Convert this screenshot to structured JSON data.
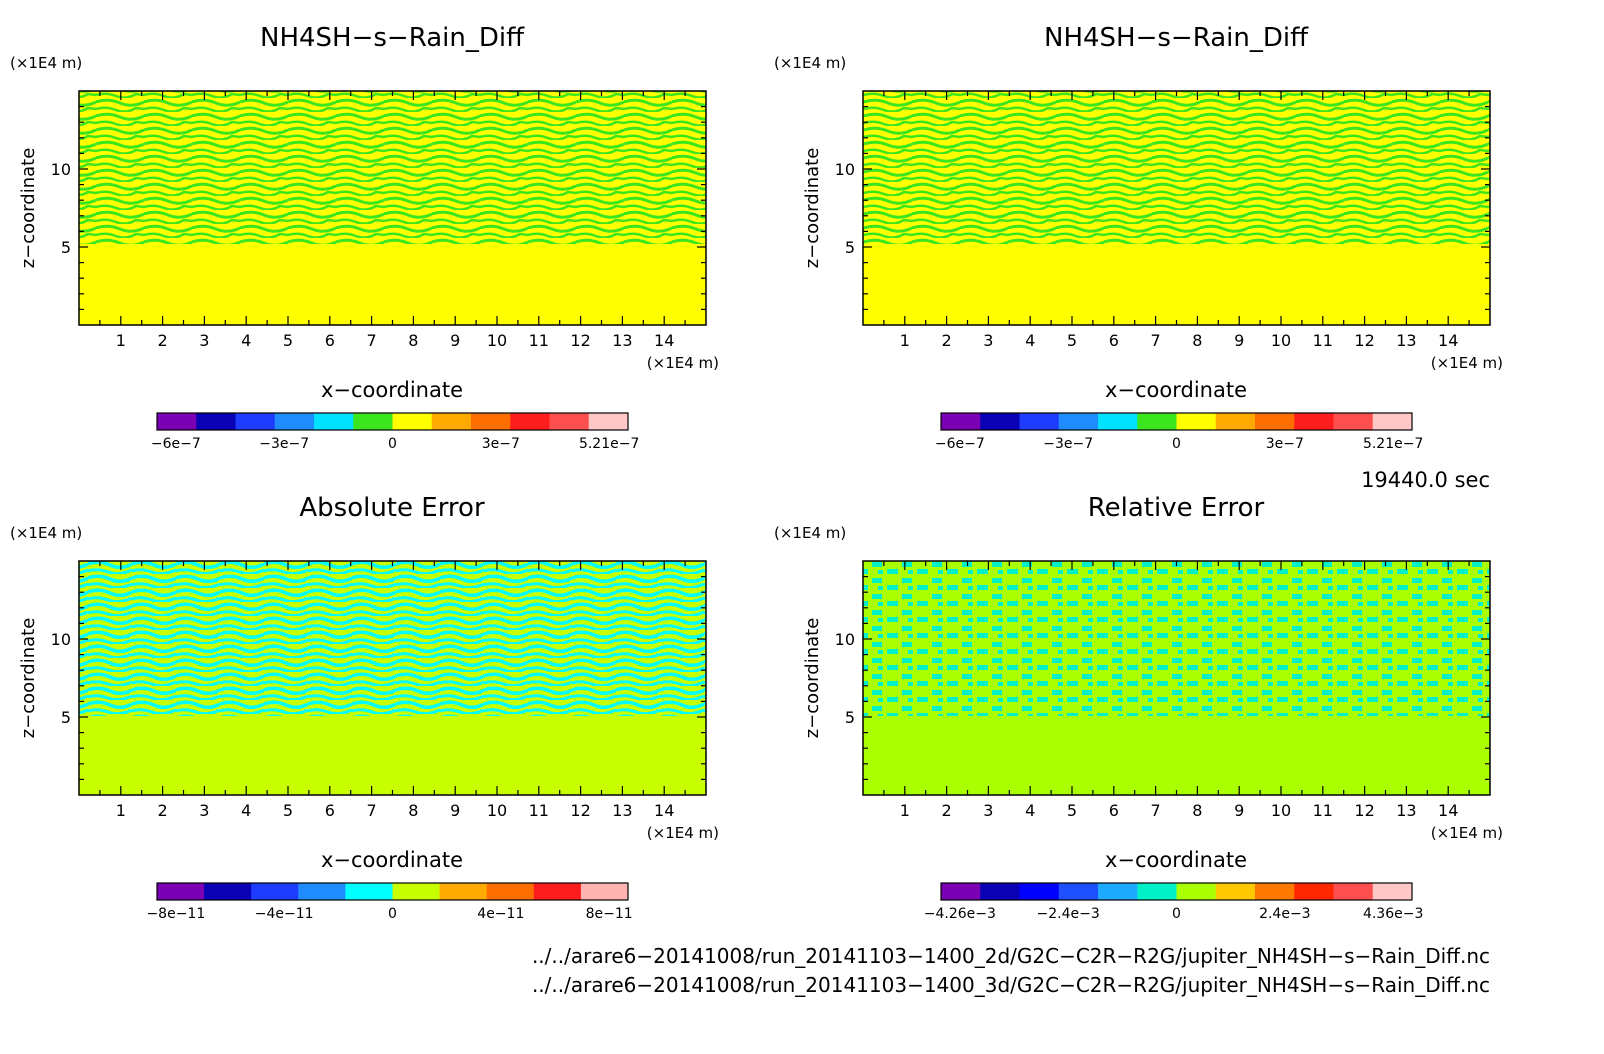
{
  "panels": [
    {
      "title": "NH4SH−s−Rain_Diff",
      "y_unit": "(×1E4 m)",
      "x_unit": "(×1E4 m)",
      "xlabel": "x−coordinate",
      "ylabel": "z−coordinate",
      "x_ticks": [
        "1",
        "2",
        "3",
        "4",
        "5",
        "6",
        "7",
        "8",
        "9",
        "10",
        "11",
        "12",
        "13",
        "14"
      ],
      "y_ticks": [
        "5",
        "10"
      ],
      "colorbar": {
        "colors": [
          "#7a00b4",
          "#0a00b4",
          "#1e3cff",
          "#1e8cff",
          "#00e1ff",
          "#3ce61e",
          "#ffff00",
          "#ffaa00",
          "#ff6e00",
          "#ff1e1e",
          "#ff5050",
          "#ffc8c8"
        ],
        "labels": [
          "−6e−7",
          "−3e−7",
          "0",
          "3e−7",
          "5.21e−7"
        ]
      }
    },
    {
      "title": "NH4SH−s−Rain_Diff",
      "y_unit": "(×1E4 m)",
      "x_unit": "(×1E4 m)",
      "xlabel": "x−coordinate",
      "ylabel": "z−coordinate",
      "x_ticks": [
        "1",
        "2",
        "3",
        "4",
        "5",
        "6",
        "7",
        "8",
        "9",
        "10",
        "11",
        "12",
        "13",
        "14"
      ],
      "y_ticks": [
        "5",
        "10"
      ],
      "colorbar": {
        "colors": [
          "#7a00b4",
          "#0a00b4",
          "#1e3cff",
          "#1e8cff",
          "#00e1ff",
          "#3ce61e",
          "#ffff00",
          "#ffaa00",
          "#ff6e00",
          "#ff1e1e",
          "#ff5050",
          "#ffc8c8"
        ],
        "labels": [
          "−6e−7",
          "−3e−7",
          "0",
          "3e−7",
          "5.21e−7"
        ]
      }
    },
    {
      "title": "Absolute Error",
      "y_unit": "(×1E4 m)",
      "x_unit": "(×1E4 m)",
      "xlabel": "x−coordinate",
      "ylabel": "z−coordinate",
      "x_ticks": [
        "1",
        "2",
        "3",
        "4",
        "5",
        "6",
        "7",
        "8",
        "9",
        "10",
        "11",
        "12",
        "13",
        "14"
      ],
      "y_ticks": [
        "5",
        "10"
      ],
      "colorbar": {
        "colors": [
          "#7a00b4",
          "#0a00b4",
          "#1e3cff",
          "#1e8cff",
          "#00ffff",
          "#c8ff00",
          "#ffaa00",
          "#ff6e00",
          "#ff1e1e",
          "#ffb4b4"
        ],
        "labels": [
          "−8e−11",
          "−4e−11",
          "0",
          "4e−11",
          "8e−11"
        ]
      }
    },
    {
      "title": "Relative Error",
      "y_unit": "(×1E4 m)",
      "x_unit": "(×1E4 m)",
      "xlabel": "x−coordinate",
      "ylabel": "z−coordinate",
      "x_ticks": [
        "1",
        "2",
        "3",
        "4",
        "5",
        "6",
        "7",
        "8",
        "9",
        "10",
        "11",
        "12",
        "13",
        "14"
      ],
      "y_ticks": [
        "5",
        "10"
      ],
      "colorbar": {
        "colors": [
          "#7a00b4",
          "#0a00b4",
          "#0000ff",
          "#1e50ff",
          "#1eaaff",
          "#00f0c8",
          "#aaff00",
          "#ffc800",
          "#ff7800",
          "#ff2800",
          "#ff5050",
          "#ffc8c8"
        ],
        "labels": [
          "−4.26e−3",
          "−2.4e−3",
          "0",
          "2.4e−3",
          "4.36e−3"
        ]
      }
    }
  ],
  "time_label": "19440.0 sec",
  "file_paths": [
    "../../arare6−20141008/run_20141103−1400_2d/G2C−C2R−R2G/jupiter_NH4SH−s−Rain_Diff.nc",
    "../../arare6−20141008/run_20141103−1400_3d/G2C−C2R−R2G/jupiter_NH4SH−s−Rain_Diff.nc"
  ],
  "chart_data": [
    {
      "type": "heatmap",
      "title": "NH4SH−s−Rain_Diff",
      "xlabel": "x−coordinate",
      "ylabel": "z−coordinate",
      "x_unit": "×1E4 m",
      "y_unit": "×1E4 m",
      "xlim": [
        0,
        15
      ],
      "ylim": [
        0,
        15
      ],
      "colorbar_ticks": [
        -6e-07,
        -3e-07,
        0,
        3e-07,
        5.21e-07
      ],
      "clim": [
        -6e-07,
        5.21e-07
      ]
    },
    {
      "type": "heatmap",
      "title": "NH4SH−s−Rain_Diff",
      "xlabel": "x−coordinate",
      "ylabel": "z−coordinate",
      "x_unit": "×1E4 m",
      "y_unit": "×1E4 m",
      "xlim": [
        0,
        15
      ],
      "ylim": [
        0,
        15
      ],
      "colorbar_ticks": [
        -6e-07,
        -3e-07,
        0,
        3e-07,
        5.21e-07
      ],
      "clim": [
        -6e-07,
        5.21e-07
      ]
    },
    {
      "type": "heatmap",
      "title": "Absolute Error",
      "xlabel": "x−coordinate",
      "ylabel": "z−coordinate",
      "x_unit": "×1E4 m",
      "y_unit": "×1E4 m",
      "xlim": [
        0,
        15
      ],
      "ylim": [
        0,
        15
      ],
      "colorbar_ticks": [
        -8e-11,
        -4e-11,
        0,
        4e-11,
        8e-11
      ],
      "clim": [
        -1e-10,
        1e-10
      ]
    },
    {
      "type": "heatmap",
      "title": "Relative Error",
      "xlabel": "x−coordinate",
      "ylabel": "z−coordinate",
      "x_unit": "×1E4 m",
      "y_unit": "×1E4 m",
      "xlim": [
        0,
        15
      ],
      "ylim": [
        0,
        15
      ],
      "colorbar_ticks": [
        -0.00426,
        -0.0024,
        0,
        0.0024,
        0.00436
      ],
      "clim": [
        -0.00426,
        0.00436
      ]
    }
  ]
}
